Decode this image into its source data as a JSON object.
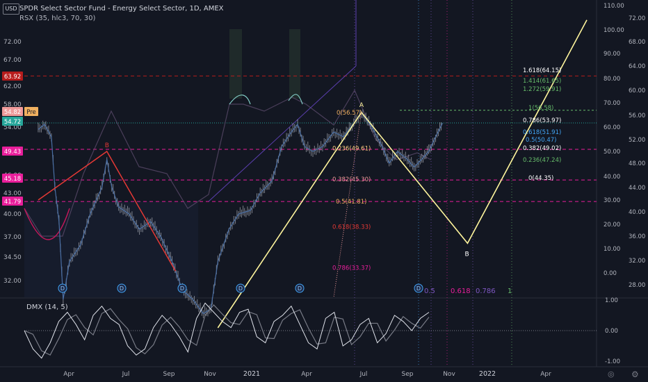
{
  "header": {
    "currency": "USD",
    "title": "SPDR Select Sector Fund - Energy Select Sector, 1D, AMEX",
    "indicator": "RSX (35, hlc3, 70, 30)"
  },
  "dmx_label": "DMX (14, 5)",
  "icons": {
    "settings": "gear-icon",
    "globe": "globe-icon"
  },
  "chart_data": {
    "type": "line",
    "left_axis_ticks": [
      "72.00",
      "67.00",
      "62.00",
      "58.00",
      "54.00",
      "49.00",
      "46.00",
      "43.00",
      "40.00",
      "37.00",
      "34.50",
      "32.00"
    ],
    "left_axis_values": [
      72,
      67,
      62,
      58,
      54,
      49,
      46,
      43,
      40,
      37,
      34.5,
      32
    ],
    "left_axis_tags": [
      {
        "label": "63.92",
        "value": 63.92,
        "color": "#b71c1c"
      },
      {
        "label": "54.82",
        "value": 54.82,
        "color": "#ef9a9a"
      },
      {
        "label": "Pre",
        "value": 54.82,
        "color": "#f0b060"
      },
      {
        "label": "54.72",
        "value": 54.72,
        "color": "#26a69a"
      },
      {
        "label": "49.43",
        "value": 49.43,
        "color": "#e91e9b"
      },
      {
        "label": "45.18",
        "value": 45.18,
        "color": "#e91e9b"
      },
      {
        "label": "41.79",
        "value": 41.79,
        "color": "#e91e9b"
      }
    ],
    "right_axis_ticks": [
      "72.00",
      "68.00",
      "64.00",
      "60.00",
      "56.00",
      "52.00",
      "48.00",
      "44.00",
      "40.00",
      "36.00",
      "32.00",
      "28.00"
    ],
    "rsx_axis_ticks": [
      "110.00",
      "100.00",
      "90.00",
      "80.00",
      "70.00",
      "60.00",
      "50.00",
      "40.00",
      "30.00",
      "20.00",
      "10.00",
      "0.00"
    ],
    "dmx_axis_ticks": [
      "1.00",
      "0.00",
      "-1.00"
    ],
    "x_axis_ticks": [
      "Apr",
      "Jul",
      "Sep",
      "Nov",
      "2021",
      "Apr",
      "Jul",
      "Sep",
      "Nov",
      "2022",
      "Apr"
    ],
    "horizontal_levels": [
      63.92,
      49.43,
      45.18,
      41.79
    ],
    "fib_levels": [
      {
        "label": "0(56.57)",
        "value": 56.57,
        "color": "#f0b060"
      },
      {
        "label": "0.236(49.61)",
        "value": 49.61,
        "color": "#ffcc80"
      },
      {
        "label": "0.382(45.30)",
        "value": 45.3,
        "color": "#ef9a9a"
      },
      {
        "label": "0.5(41.81)",
        "value": 41.81,
        "color": "#f0b060"
      },
      {
        "label": "0.618(38.33)",
        "value": 38.33,
        "color": "#e53935"
      },
      {
        "label": "0.786(33.37)",
        "value": 33.37,
        "color": "#e91e9b"
      }
    ],
    "fib_extension": [
      {
        "label": "1.618(64.15)",
        "value": 64.15,
        "color": "#ffffff"
      },
      {
        "label": "1.414(61.65)",
        "value": 61.65,
        "color": "#66bb6a"
      },
      {
        "label": "1.272(59.91)",
        "value": 59.91,
        "color": "#66bb6a"
      },
      {
        "label": "1(56.58)",
        "value": 56.58,
        "color": "#66bb6a"
      },
      {
        "label": "0.786(53.97)",
        "value": 53.97,
        "color": "#ffffff"
      },
      {
        "label": "0.618(51.91)",
        "value": 51.91,
        "color": "#42a5f5"
      },
      {
        "label": "0.5(50.47)",
        "value": 50.47,
        "color": "#42a5f5"
      },
      {
        "label": "0.382(49.02)",
        "value": 49.02,
        "color": "#ffffff"
      },
      {
        "label": "0.236(47.24)",
        "value": 47.24,
        "color": "#66bb6a"
      },
      {
        "label": "0(44.35)",
        "value": 44.35,
        "color": "#ffffff"
      }
    ],
    "wave_labels": [
      "B",
      "A",
      "B"
    ],
    "bottom_fib_row": [
      {
        "label": "0.5",
        "color": "#7e57c2"
      },
      {
        "label": "0.618",
        "color": "#e91e9b"
      },
      {
        "label": "0.786",
        "color": "#7e57c2"
      },
      {
        "label": "1",
        "color": "#66bb6a"
      }
    ],
    "dividend_marker": "D",
    "dividend_count": 6,
    "price_path": [
      [
        "2020-03-01",
        53.5
      ],
      [
        "2020-03-10",
        54.5
      ],
      [
        "2020-03-20",
        52
      ],
      [
        "2020-03-25",
        44
      ],
      [
        "2020-03-31",
        39
      ],
      [
        "2020-04-06",
        30
      ],
      [
        "2020-04-15",
        34
      ],
      [
        "2020-05-01",
        36
      ],
      [
        "2020-05-15",
        40
      ],
      [
        "2020-06-01",
        44
      ],
      [
        "2020-06-08",
        48
      ],
      [
        "2020-06-15",
        44
      ],
      [
        "2020-06-25",
        41
      ],
      [
        "2020-07-10",
        40
      ],
      [
        "2020-07-25",
        38
      ],
      [
        "2020-08-10",
        39
      ],
      [
        "2020-08-25",
        37
      ],
      [
        "2020-09-10",
        34
      ],
      [
        "2020-09-25",
        31
      ],
      [
        "2020-10-10",
        30
      ],
      [
        "2020-10-25",
        28.5
      ],
      [
        "2020-11-05",
        29
      ],
      [
        "2020-11-15",
        34
      ],
      [
        "2020-12-01",
        38
      ],
      [
        "2020-12-15",
        40
      ],
      [
        "2021-01-01",
        40.5
      ],
      [
        "2021-01-15",
        43
      ],
      [
        "2021-02-01",
        45
      ],
      [
        "2021-02-15",
        50
      ],
      [
        "2021-03-01",
        53
      ],
      [
        "2021-03-10",
        54.5
      ],
      [
        "2021-03-20",
        50
      ],
      [
        "2021-04-01",
        49
      ],
      [
        "2021-04-15",
        50
      ],
      [
        "2021-05-01",
        53
      ],
      [
        "2021-05-15",
        52
      ],
      [
        "2021-06-01",
        55
      ],
      [
        "2021-06-10",
        56.5
      ],
      [
        "2021-06-25",
        54
      ],
      [
        "2021-07-10",
        50
      ],
      [
        "2021-07-20",
        47.5
      ],
      [
        "2021-08-01",
        49
      ],
      [
        "2021-08-15",
        48
      ],
      [
        "2021-08-25",
        47
      ],
      [
        "2021-09-05",
        48
      ],
      [
        "2021-09-15",
        49
      ],
      [
        "2021-09-25",
        52
      ],
      [
        "2021-10-05",
        54.7
      ]
    ],
    "zigzag_red": [
      [
        "2020-03-01",
        42
      ],
      [
        "2020-06-08",
        49
      ],
      [
        "2020-09-15",
        33
      ]
    ],
    "zigzag_yellow": [
      [
        "2020-11-15",
        27
      ],
      [
        "2021-06-10",
        56.57
      ],
      [
        "2021-11-10",
        36.2
      ],
      [
        "2022-05-01",
        78
      ]
    ],
    "dmx_series": [
      0.0,
      -0.6,
      -0.9,
      -0.4,
      0.3,
      0.6,
      0.2,
      -0.3,
      0.5,
      0.8,
      0.4,
      0.2,
      -0.5,
      -0.8,
      -0.6,
      0.1,
      0.5,
      0.2,
      -0.2,
      -0.7,
      0.4,
      0.9,
      0.6,
      0.3,
      0.1,
      0.6,
      0.7,
      -0.2,
      -0.4,
      0.3,
      0.5,
      0.8,
      0.2,
      -0.4,
      -0.6,
      0.4,
      0.6,
      -0.5,
      -0.3,
      0.2,
      0.4,
      -0.4,
      -0.1,
      0.5,
      0.3,
      0.0,
      0.4,
      0.6
    ]
  }
}
